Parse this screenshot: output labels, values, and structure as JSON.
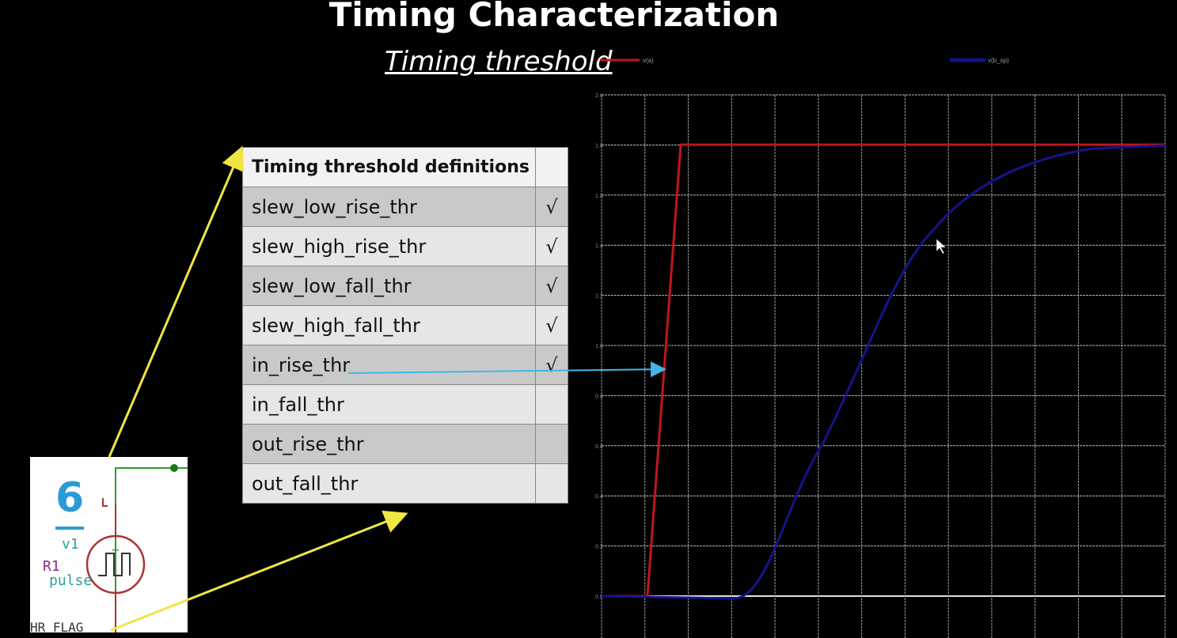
{
  "slide": {
    "title": "Timing Characterization",
    "subtitle": "Timing threshold"
  },
  "table": {
    "header": "Timing threshold definitions",
    "rows": [
      {
        "label": "slew_low_rise_thr",
        "check": "√"
      },
      {
        "label": "slew_high_rise_thr",
        "check": "√"
      },
      {
        "label": "slew_low_fall_thr",
        "check": "√"
      },
      {
        "label": "slew_high_fall_thr",
        "check": "√"
      },
      {
        "label": "in_rise_thr",
        "check": "√"
      },
      {
        "label": "in_fall_thr",
        "check": ""
      },
      {
        "label": "out_rise_thr",
        "check": ""
      },
      {
        "label": "out_fall_thr",
        "check": ""
      }
    ]
  },
  "schematic": {
    "number": "6",
    "source_name": "v1",
    "resistor_label": "R1",
    "source_type": "pulse",
    "flag_label": "HR_FLAG"
  },
  "plot": {
    "legend": [
      {
        "name": "v(a)",
        "color": "#c0161b"
      },
      {
        "name": "v(b_sp)",
        "color": "#14148c"
      }
    ],
    "y_ticks": [
      "2.0",
      "1.8",
      "1.6",
      "1.4",
      "1.2",
      "1.0",
      "0.8",
      "0.6",
      "0.4",
      "0.2",
      "0.0"
    ]
  },
  "colors": {
    "annotation_arrow": "#f0e642",
    "threshold_arrow": "#3fb6e8",
    "grid": "#cfcfcf"
  }
}
